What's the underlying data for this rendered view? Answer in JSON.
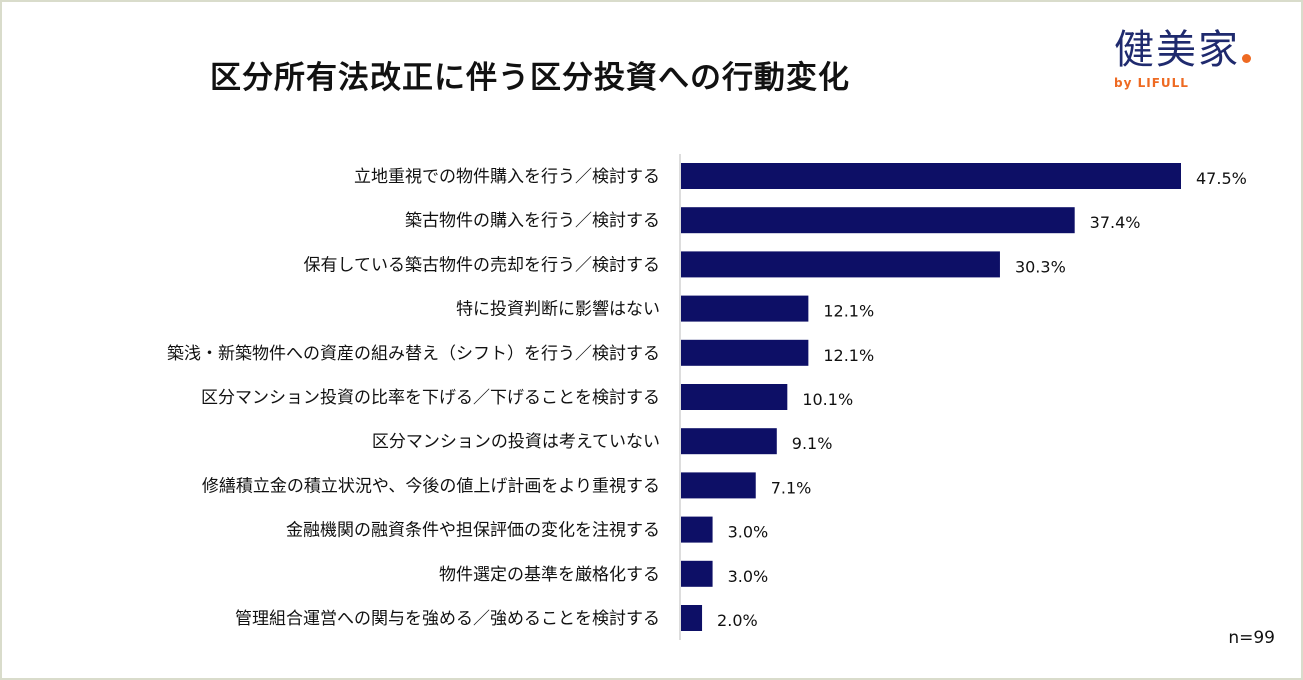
{
  "logo": {
    "main": "健美家",
    "sub": "by LIFULL",
    "brand_color": "#1f2a6e",
    "accent_color": "#ee6a22"
  },
  "sample_note": "n=99",
  "chart_data": {
    "type": "bar",
    "orientation": "horizontal",
    "title": "区分所有法改正に伴う区分投資への行動変化",
    "categories": [
      "立地重視での物件購入を行う／検討する",
      "築古物件の購入を行う／検討する",
      "保有している築古物件の売却を行う／検討する",
      "特に投資判断に影響はない",
      "築浅・新築物件への資産の組み替え（シフト）を行う／検討する",
      "区分マンション投資の比率を下げる／下げることを検討する",
      "区分マンションの投資は考えていない",
      "修繕積立金の積立状況や、今後の値上げ計画をより重視する",
      "金融機関の融資条件や担保評価の変化を注視する",
      "物件選定の基準を厳格化する",
      "管理組合運営への関与を強める／強めることを検討する"
    ],
    "values": [
      47.5,
      37.4,
      30.3,
      12.1,
      12.1,
      10.1,
      9.1,
      7.1,
      3.0,
      3.0,
      2.0
    ],
    "labels": [
      "47.5%",
      "37.4%",
      "30.3%",
      "12.1%",
      "12.1%",
      "10.1%",
      "9.1%",
      "7.1%",
      "3.0%",
      "3.0%",
      "2.0%"
    ],
    "unit": "%",
    "bar_color": "#0d0f66",
    "grid": false,
    "legend": "none"
  }
}
